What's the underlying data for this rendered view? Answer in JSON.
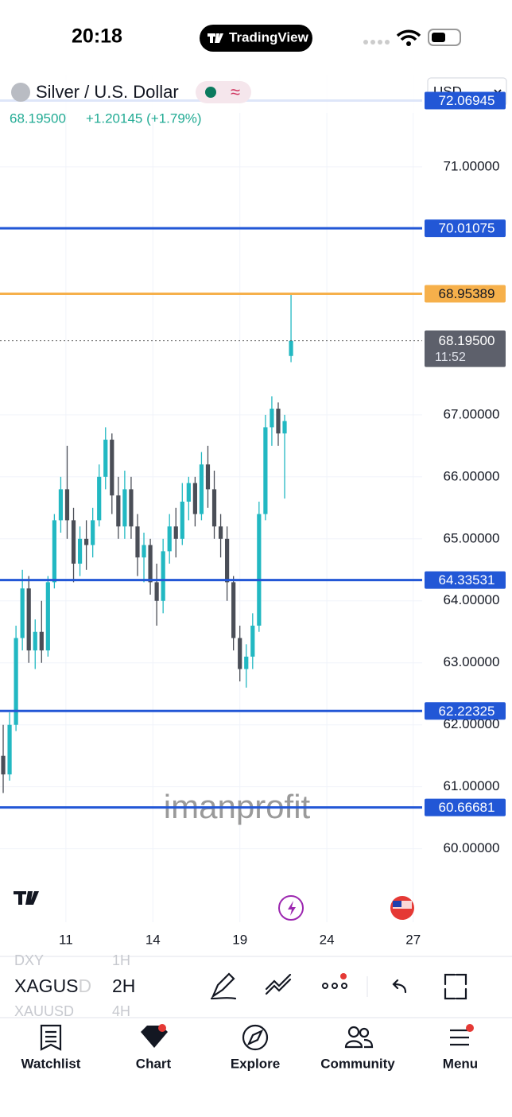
{
  "status": {
    "time": "20:18",
    "app": "TradingView"
  },
  "header": {
    "symbol": "Silver / U.S. Dollar",
    "price": "68.19500",
    "change": "+1.20145 (+1.79%)",
    "currency": "USD"
  },
  "chart_data": {
    "type": "candlestick",
    "x": [
      0,
      1,
      2,
      3,
      4,
      5,
      6,
      7,
      8,
      9,
      10,
      11,
      12,
      13,
      14,
      15,
      16,
      17,
      18,
      19,
      20,
      21,
      22,
      23,
      24,
      25,
      26,
      27,
      28,
      29,
      30,
      31,
      32,
      33,
      34,
      35,
      36,
      37,
      38,
      39,
      40,
      41,
      42,
      43,
      44,
      45
    ],
    "open": [
      61.5,
      61.2,
      62.0,
      63.4,
      64.2,
      63.2,
      63.5,
      63.2,
      64.3,
      65.3,
      65.8,
      65.3,
      64.6,
      65.0,
      64.9,
      65.3,
      66.0,
      66.6,
      65.7,
      65.2,
      65.8,
      65.2,
      64.7,
      64.9,
      64.3,
      64.0,
      64.8,
      65.2,
      65.0,
      65.6,
      65.9,
      65.4,
      66.2,
      65.8,
      65.2,
      65.0,
      64.3,
      63.4,
      62.9,
      63.1,
      63.6,
      65.4,
      66.8,
      67.1,
      66.7,
      67.95
    ],
    "high": [
      62.0,
      62.2,
      63.6,
      64.5,
      64.4,
      63.7,
      64.0,
      64.4,
      65.4,
      66.0,
      66.5,
      65.5,
      65.2,
      65.3,
      65.5,
      66.2,
      66.8,
      66.7,
      66.0,
      66.1,
      66.0,
      65.4,
      65.1,
      65.0,
      64.6,
      65.0,
      65.4,
      65.5,
      65.9,
      66.0,
      66.0,
      66.4,
      66.5,
      66.1,
      65.4,
      65.2,
      64.4,
      63.6,
      63.3,
      63.8,
      65.6,
      67.0,
      67.3,
      67.2,
      67.0,
      68.95389
    ],
    "low": [
      60.9,
      61.1,
      61.9,
      63.2,
      63.0,
      62.9,
      63.0,
      63.1,
      64.2,
      65.1,
      65.0,
      64.3,
      64.4,
      64.5,
      64.7,
      65.2,
      65.8,
      65.4,
      65.0,
      65.0,
      65.0,
      64.4,
      64.3,
      64.1,
      63.6,
      63.8,
      64.6,
      64.7,
      64.9,
      65.3,
      65.2,
      65.3,
      65.5,
      65.0,
      64.7,
      64.0,
      63.2,
      62.7,
      62.6,
      62.9,
      63.5,
      65.3,
      66.5,
      66.5,
      65.65,
      67.85
    ],
    "close": [
      61.2,
      62.0,
      63.4,
      64.2,
      63.2,
      63.5,
      63.2,
      64.3,
      65.3,
      65.8,
      65.3,
      64.6,
      65.0,
      64.9,
      65.3,
      66.0,
      66.6,
      65.7,
      65.2,
      65.8,
      65.2,
      64.7,
      64.9,
      64.3,
      64.0,
      64.8,
      65.2,
      65.0,
      65.6,
      65.9,
      65.4,
      66.2,
      65.8,
      65.2,
      65.0,
      64.3,
      63.4,
      62.9,
      63.1,
      63.6,
      65.4,
      66.8,
      67.1,
      66.7,
      66.9,
      68.195
    ],
    "up_color": "#22b8c2",
    "down_color": "#4a4e57",
    "xlim": [
      -0.5,
      65.5
    ],
    "xticks": [
      {
        "value": 9.8,
        "label": "11"
      },
      {
        "value": 23.4,
        "label": "14"
      },
      {
        "value": 37,
        "label": "19"
      },
      {
        "value": 50.6,
        "label": "24"
      },
      {
        "value": 64.1,
        "label": "27"
      }
    ],
    "ylim": [
      72.4868,
      58.8158
    ],
    "yticks": [
      {
        "value": 71,
        "label": "71.00000"
      },
      {
        "value": 67,
        "label": "67.00000"
      },
      {
        "value": 66,
        "label": "66.00000"
      },
      {
        "value": 65,
        "label": "65.00000"
      },
      {
        "value": 64,
        "label": "64.00000"
      },
      {
        "value": 63,
        "label": "63.00000"
      },
      {
        "value": 62,
        "label": "62.00000"
      },
      {
        "value": 61,
        "label": "61.00000"
      },
      {
        "value": 60,
        "label": "60.00000"
      }
    ],
    "grid": true,
    "price_lines": [
      {
        "value": 72.06945,
        "color": "#2257d6"
      },
      {
        "value": 70.01075,
        "color": "#2257d6"
      },
      {
        "value": 68.95389,
        "color": "#f6b04b"
      },
      {
        "value": 64.33531,
        "color": "#2257d6"
      },
      {
        "value": 62.22325,
        "color": "#2257d6"
      },
      {
        "value": 60.66681,
        "color": "#2257d6"
      }
    ],
    "last_price": {
      "value": 68.195,
      "label": "68.19500",
      "countdown": "11:52"
    },
    "watermark": "imanprofit"
  },
  "toolbar": {
    "prev_symbol": "DXY",
    "prev_interval": "1H",
    "symbol": "XAGUSD",
    "interval": "2H",
    "next_symbol": "XAUUSD",
    "next_interval": "4H"
  },
  "tabs": [
    "Watchlist",
    "Chart",
    "Explore",
    "Community",
    "Menu"
  ]
}
